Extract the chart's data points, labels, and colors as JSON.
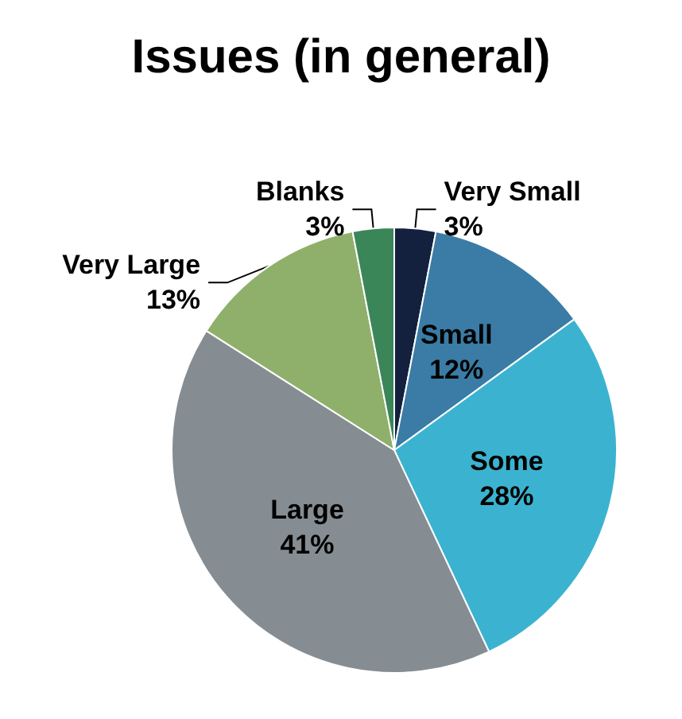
{
  "chart_data": {
    "type": "pie",
    "title": "Issues (in general)",
    "categories": [
      "Very Small",
      "Small",
      "Some",
      "Large",
      "Very Large",
      "Blanks"
    ],
    "values": [
      3,
      12,
      28,
      41,
      13,
      3
    ],
    "value_labels": [
      "3%",
      "12%",
      "28%",
      "41%",
      "13%",
      "3%"
    ],
    "colors": [
      "#13213f",
      "#3a7ca5",
      "#3bb3d0",
      "#858d93",
      "#8fb06a",
      "#3a8658"
    ],
    "legend": false
  }
}
